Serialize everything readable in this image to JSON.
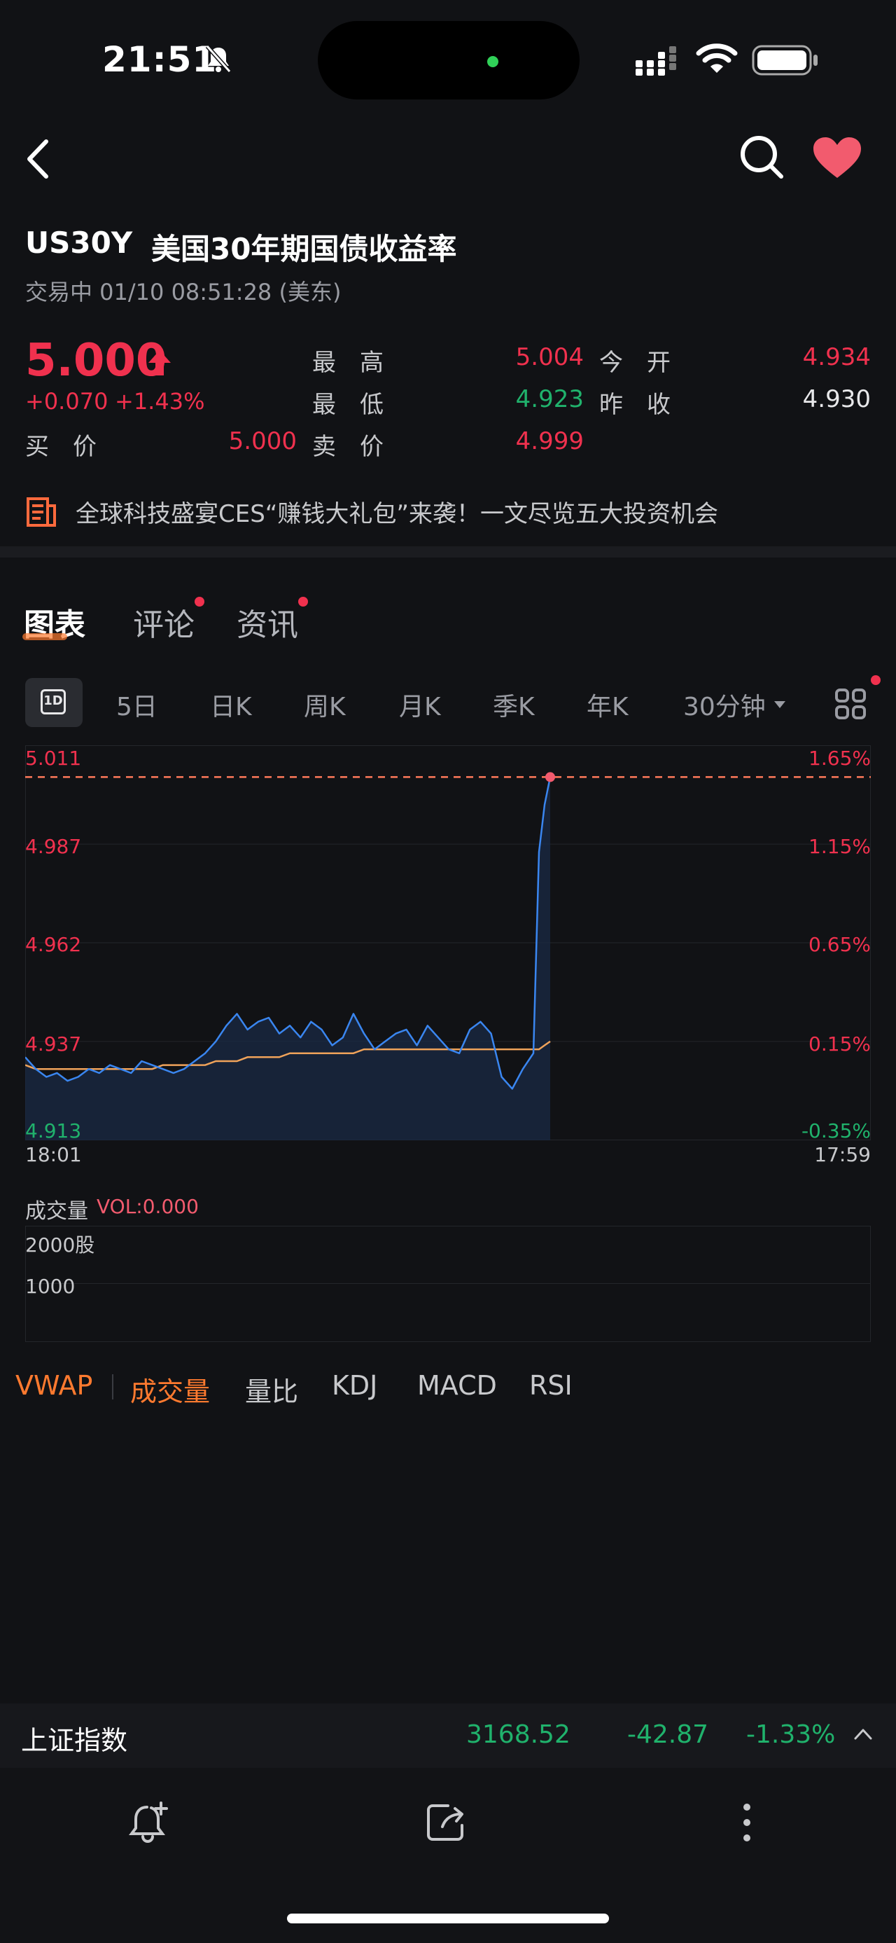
{
  "status_bar": {
    "time": "21:51"
  },
  "header": {
    "code": "US30Y",
    "title": "美国30年期国债收益率",
    "trade_status": "交易中 01/10 08:51:28 (美东)"
  },
  "quote": {
    "price": "5.000",
    "change": "+0.070",
    "change_pct": "+1.43%",
    "high_label": "最　高",
    "high": "5.004",
    "low_label": "最　低",
    "low": "4.923",
    "open_label": "今　开",
    "open": "4.934",
    "prev_close_label": "昨　收",
    "prev_close": "4.930",
    "bid_label": "买　价",
    "bid": "5.000",
    "ask_label": "卖　价",
    "ask": "4.999"
  },
  "news": {
    "text": "全球科技盛宴CES“赚钱大礼包”来袭！一文尽览五大投资机会"
  },
  "tabs": [
    {
      "label": "图表",
      "active": true
    },
    {
      "label": "评论",
      "badge": true
    },
    {
      "label": "资讯",
      "badge": true
    }
  ],
  "periods": [
    "1D",
    "5日",
    "日K",
    "周K",
    "月K",
    "季K",
    "年K",
    "30分钟"
  ],
  "chart": {
    "left_ticks": [
      "5.011",
      "4.987",
      "4.962",
      "4.937",
      "4.913"
    ],
    "right_ticks": [
      "1.65%",
      "1.15%",
      "0.65%",
      "0.15%",
      "-0.35%"
    ],
    "time_start": "18:01",
    "time_end": "17:59"
  },
  "chart_data": {
    "type": "line",
    "ylim": [
      4.913,
      5.011
    ],
    "reference_line": 5.004,
    "series": [
      {
        "name": "",
        "values": [
          4.933,
          4.93,
          4.928,
          4.929,
          4.927,
          4.928,
          4.93,
          4.929,
          4.931,
          4.93,
          4.929,
          4.932,
          4.931,
          4.93,
          4.929,
          4.93,
          4.932,
          4.934,
          4.937,
          4.941,
          4.944,
          4.94,
          4.942,
          4.943,
          4.939,
          4.941,
          4.938,
          4.942,
          4.94,
          4.936,
          4.938,
          4.944,
          4.939,
          4.935,
          4.937,
          4.939,
          4.94,
          4.936,
          4.941,
          4.938,
          4.935,
          4.934,
          4.94,
          4.942,
          4.939,
          4.928,
          4.925,
          4.93,
          4.934,
          4.985,
          4.997,
          5.004
        ]
      },
      {
        "name": "",
        "values": [
          4.931,
          4.93,
          4.93,
          4.93,
          4.93,
          4.93,
          4.93,
          4.93,
          4.93,
          4.93,
          4.93,
          4.93,
          4.93,
          4.931,
          4.931,
          4.931,
          4.931,
          4.931,
          4.932,
          4.932,
          4.932,
          4.933,
          4.933,
          4.933,
          4.933,
          4.934,
          4.934,
          4.934,
          4.934,
          4.934,
          4.934,
          4.934,
          4.935,
          4.935,
          4.935,
          4.935,
          4.935,
          4.935,
          4.935,
          4.935,
          4.935,
          4.935,
          4.935,
          4.935,
          4.935,
          4.935,
          4.935,
          4.935,
          4.935,
          4.935,
          4.936,
          4.937
        ]
      }
    ]
  },
  "volume": {
    "label": "成交量",
    "vol_text": "VOL:0.000",
    "ticks": [
      "2000股",
      "1000"
    ]
  },
  "indicators": [
    "VWAP",
    "成交量",
    "量比",
    "KDJ",
    "MACD",
    "RSI"
  ],
  "index_bar": {
    "name": "上证指数",
    "value": "3168.52",
    "change": "-42.87",
    "change_pct": "-1.33%"
  },
  "colors": {
    "up": "#f0314e",
    "down": "#20b26c",
    "accent": "#ff7a2f",
    "line": "#3a86f0",
    "avg": "#f0a35a"
  }
}
